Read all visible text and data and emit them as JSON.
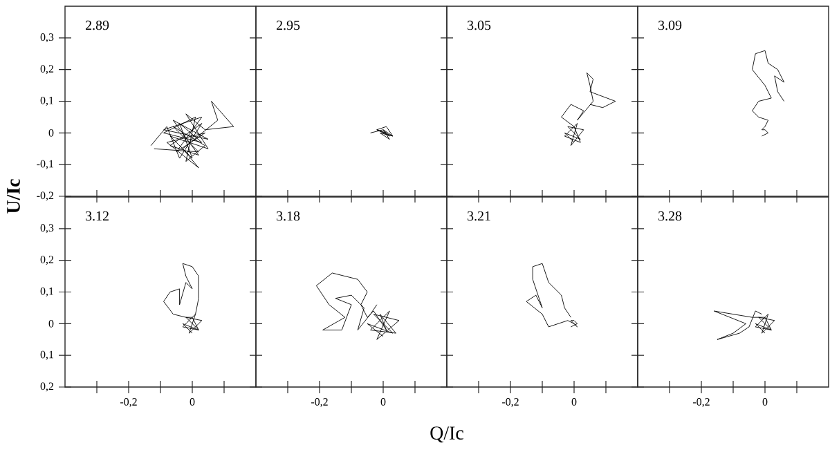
{
  "chart_data": [
    {
      "type": "line",
      "ylabel": "U/Ic",
      "annotations": [
        "2.89"
      ],
      "xlim": [
        -0.4,
        0.2
      ],
      "ylim": [
        -0.2,
        0.4
      ],
      "tick_labels": "y",
      "xticks": [
        {
          "value": -0.3,
          "label": null
        },
        {
          "value": -0.2,
          "label": null
        },
        {
          "value": -0.1,
          "label": null
        },
        {
          "value": 0,
          "label": null
        },
        {
          "value": 0.1,
          "label": null
        }
      ],
      "yticks": [
        {
          "value": -0.2,
          "label": "-0,2"
        },
        {
          "value": -0.1,
          "label": "-0,1"
        },
        {
          "value": 0,
          "label": "0"
        },
        {
          "value": 0.1,
          "label": "0,1"
        },
        {
          "value": 0.2,
          "label": "0,2"
        },
        {
          "value": 0.3,
          "label": "0,3"
        }
      ],
      "series": [
        {
          "color": "#000000",
          "x": [
            -0.13,
            -0.08,
            -0.04,
            0.03,
            -0.07,
            0.02,
            -0.06,
            0.05,
            -0.09,
            0.03,
            -0.05,
            0.04,
            -0.08,
            0.02,
            -0.03,
            0.08,
            0.06,
            0.13,
            0.04,
            -0.02,
            0.05,
            -0.07,
            0.0,
            -0.04,
            0.03,
            -0.09,
            0.01,
            -0.02,
            0.04,
            -0.06,
            0.02,
            -0.12
          ],
          "values": [
            -0.04,
            0.02,
            -0.08,
            0.03,
            -0.04,
            -0.07,
            0.04,
            -0.02,
            0.01,
            0.05,
            -0.06,
            0.0,
            -0.03,
            -0.11,
            -0.05,
            0.04,
            0.1,
            0.02,
            0.01,
            0.06,
            -0.05,
            -0.01,
            -0.08,
            0.03,
            -0.03,
            0.0,
            0.05,
            -0.09,
            -0.04,
            0.02,
            -0.06,
            -0.05
          ]
        }
      ]
    },
    {
      "type": "line",
      "annotations": [
        "2.95"
      ],
      "xlim": [
        -0.4,
        0.2
      ],
      "ylim": [
        -0.2,
        0.4
      ],
      "tick_labels": false,
      "xticks": [
        {
          "value": -0.3,
          "label": null
        },
        {
          "value": -0.2,
          "label": null
        },
        {
          "value": -0.1,
          "label": null
        },
        {
          "value": 0,
          "label": null
        },
        {
          "value": 0.1,
          "label": null
        }
      ],
      "yticks": [
        {
          "value": -0.2,
          "label": null
        },
        {
          "value": -0.1,
          "label": null
        },
        {
          "value": 0,
          "label": null
        },
        {
          "value": 0.1,
          "label": null
        },
        {
          "value": 0.2,
          "label": null
        },
        {
          "value": 0.3,
          "label": null
        }
      ],
      "series": [
        {
          "color": "#000000",
          "x": [
            -0.04,
            0.0,
            0.02,
            -0.02,
            0.01,
            0.03,
            -0.01,
            0.02,
            0.0,
            0.03,
            -0.02,
            0.01
          ],
          "values": [
            0.0,
            0.01,
            -0.01,
            0.01,
            0.02,
            -0.01,
            0.0,
            -0.02,
            0.01,
            -0.01,
            0.01,
            0.0
          ]
        }
      ]
    },
    {
      "type": "line",
      "annotations": [
        "3.05"
      ],
      "xlim": [
        -0.4,
        0.2
      ],
      "ylim": [
        -0.2,
        0.4
      ],
      "tick_labels": false,
      "xticks": [
        {
          "value": -0.3,
          "label": null
        },
        {
          "value": -0.2,
          "label": null
        },
        {
          "value": -0.1,
          "label": null
        },
        {
          "value": 0,
          "label": null
        },
        {
          "value": 0.1,
          "label": null
        }
      ],
      "yticks": [
        {
          "value": -0.2,
          "label": null
        },
        {
          "value": -0.1,
          "label": null
        },
        {
          "value": 0,
          "label": null
        },
        {
          "value": 0.1,
          "label": null
        },
        {
          "value": 0.2,
          "label": null
        },
        {
          "value": 0.3,
          "label": null
        }
      ],
      "series": [
        {
          "color": "#000000",
          "x": [
            0.0,
            -0.03,
            0.02,
            -0.02,
            0.03,
            -0.01,
            0.01,
            -0.03,
            0.02,
            0.0,
            0.0,
            -0.04,
            -0.01,
            0.03,
            0.01,
            0.06,
            0.05,
            0.04,
            0.06,
            0.05,
            0.13,
            0.09,
            0.05
          ],
          "values": [
            -0.03,
            0.0,
            -0.02,
            0.02,
            0.01,
            -0.04,
            0.03,
            -0.01,
            -0.03,
            0.02,
            0.02,
            0.05,
            0.09,
            0.07,
            0.04,
            0.1,
            0.15,
            0.19,
            0.17,
            0.13,
            0.1,
            0.08,
            0.09
          ]
        }
      ]
    },
    {
      "type": "line",
      "annotations": [
        "3.09"
      ],
      "xlim": [
        -0.4,
        0.2
      ],
      "ylim": [
        -0.2,
        0.4
      ],
      "tick_labels": false,
      "xticks": [
        {
          "value": -0.3,
          "label": null
        },
        {
          "value": -0.2,
          "label": null
        },
        {
          "value": -0.1,
          "label": null
        },
        {
          "value": 0,
          "label": null
        },
        {
          "value": 0.1,
          "label": null
        }
      ],
      "yticks": [
        {
          "value": -0.2,
          "label": null
        },
        {
          "value": -0.1,
          "label": null
        },
        {
          "value": 0,
          "label": null
        },
        {
          "value": 0.1,
          "label": null
        },
        {
          "value": 0.2,
          "label": null
        },
        {
          "value": 0.3,
          "label": null
        }
      ],
      "series": [
        {
          "color": "#000000",
          "x": [
            -0.01,
            0.01,
            0.0,
            -0.01,
            0.0,
            0.01,
            -0.02,
            -0.04,
            -0.02,
            0.02,
            0.0,
            -0.04,
            -0.03,
            0.0,
            0.01,
            0.04,
            0.06,
            0.03,
            0.04,
            0.06
          ],
          "values": [
            -0.01,
            0.0,
            0.01,
            0.01,
            0.02,
            0.04,
            0.05,
            0.07,
            0.1,
            0.11,
            0.15,
            0.2,
            0.25,
            0.26,
            0.22,
            0.2,
            0.16,
            0.18,
            0.13,
            0.1
          ]
        }
      ]
    },
    {
      "type": "line",
      "annotations": [
        "3.12"
      ],
      "xlim": [
        -0.4,
        0.2
      ],
      "ylim": [
        -0.2,
        0.4
      ],
      "xticks": [
        {
          "value": -0.3,
          "label": null
        },
        {
          "value": -0.2,
          "label": "-0,2"
        },
        {
          "value": -0.1,
          "label": null
        },
        {
          "value": 0,
          "label": "0"
        },
        {
          "value": 0.1,
          "label": null
        }
      ],
      "yticks": [
        {
          "value": -0.2,
          "label": "0,2"
        },
        {
          "value": -0.1,
          "label": "0,1"
        },
        {
          "value": 0,
          "label": "0"
        },
        {
          "value": 0.1,
          "label": "0,1"
        },
        {
          "value": 0.2,
          "label": "0,2"
        },
        {
          "value": 0.3,
          "label": "0,3"
        }
      ],
      "series": [
        {
          "color": "#000000",
          "x": [
            0.0,
            -0.03,
            0.02,
            -0.02,
            0.03,
            -0.01,
            0.01,
            -0.03,
            0.02,
            0.0,
            -0.02,
            -0.06,
            -0.09,
            -0.07,
            -0.04,
            -0.04,
            -0.02,
            0.0,
            -0.02,
            -0.03,
            0.0,
            0.02,
            0.02,
            0.01
          ],
          "values": [
            -0.03,
            0.0,
            -0.02,
            0.02,
            0.01,
            -0.03,
            0.03,
            -0.01,
            -0.02,
            0.02,
            0.02,
            0.03,
            0.07,
            0.1,
            0.11,
            0.06,
            0.13,
            0.11,
            0.15,
            0.19,
            0.18,
            0.15,
            0.08,
            0.03
          ]
        }
      ]
    },
    {
      "type": "line",
      "xlabel": "Q/Ic",
      "annotations": [
        "3.18"
      ],
      "xlim": [
        -0.4,
        0.2
      ],
      "ylim": [
        -0.2,
        0.4
      ],
      "tick_labels": "x",
      "xticks": [
        {
          "value": -0.3,
          "label": null
        },
        {
          "value": -0.2,
          "label": "-0,2"
        },
        {
          "value": -0.1,
          "label": null
        },
        {
          "value": 0,
          "label": "0"
        },
        {
          "value": 0.1,
          "label": null
        }
      ],
      "yticks": [
        {
          "value": -0.2,
          "label": null
        },
        {
          "value": -0.1,
          "label": null
        },
        {
          "value": 0,
          "label": null
        },
        {
          "value": 0.1,
          "label": null
        },
        {
          "value": 0.2,
          "label": null
        },
        {
          "value": 0.3,
          "label": null
        }
      ],
      "series": [
        {
          "color": "#000000",
          "x": [
            0.0,
            -0.05,
            0.03,
            -0.03,
            0.05,
            -0.02,
            0.02,
            -0.04,
            0.04,
            -0.01,
            0.01,
            -0.03,
            -0.05,
            -0.07,
            -0.05,
            -0.08,
            -0.16,
            -0.21,
            -0.17,
            -0.12,
            -0.19,
            -0.13,
            -0.1,
            -0.15,
            -0.1,
            -0.06,
            -0.08,
            -0.04,
            -0.02
          ],
          "values": [
            -0.04,
            0.0,
            -0.03,
            0.03,
            0.01,
            -0.05,
            0.04,
            -0.02,
            -0.03,
            0.03,
            -0.02,
            0.04,
            0.02,
            0.06,
            0.1,
            0.14,
            0.16,
            0.12,
            0.06,
            0.02,
            -0.02,
            -0.02,
            0.06,
            0.08,
            0.09,
            0.05,
            -0.02,
            0.03,
            0.06
          ]
        }
      ]
    },
    {
      "type": "line",
      "annotations": [
        "3.21"
      ],
      "xlim": [
        -0.4,
        0.2
      ],
      "ylim": [
        -0.2,
        0.4
      ],
      "tick_labels": "x",
      "xticks": [
        {
          "value": -0.3,
          "label": null
        },
        {
          "value": -0.2,
          "label": "-0,2"
        },
        {
          "value": -0.1,
          "label": null
        },
        {
          "value": 0,
          "label": "0"
        },
        {
          "value": 0.1,
          "label": null
        }
      ],
      "yticks": [
        {
          "value": -0.2,
          "label": null
        },
        {
          "value": -0.1,
          "label": null
        },
        {
          "value": 0,
          "label": null
        },
        {
          "value": 0.1,
          "label": null
        },
        {
          "value": 0.2,
          "label": null
        },
        {
          "value": 0.3,
          "label": null
        }
      ],
      "series": [
        {
          "color": "#000000",
          "x": [
            -0.01,
            0.01,
            0.0,
            -0.01,
            0.01,
            0.0,
            -0.02,
            -0.05,
            -0.08,
            -0.1,
            -0.15,
            -0.12,
            -0.1,
            -0.13,
            -0.13,
            -0.1,
            -0.08,
            -0.04,
            -0.03,
            -0.01
          ],
          "values": [
            -0.01,
            0.0,
            0.01,
            0.01,
            -0.01,
            0.0,
            0.01,
            0.0,
            -0.01,
            0.03,
            0.07,
            0.09,
            0.05,
            0.14,
            0.18,
            0.19,
            0.13,
            0.09,
            0.05,
            0.02
          ]
        }
      ]
    },
    {
      "type": "line",
      "annotations": [
        "3.28"
      ],
      "xlim": [
        -0.4,
        0.2
      ],
      "ylim": [
        -0.2,
        0.4
      ],
      "tick_labels": "x",
      "xticks": [
        {
          "value": -0.3,
          "label": null
        },
        {
          "value": -0.2,
          "label": "-0,2"
        },
        {
          "value": -0.1,
          "label": null
        },
        {
          "value": 0,
          "label": "0"
        },
        {
          "value": 0.1,
          "label": null
        }
      ],
      "yticks": [
        {
          "value": -0.2,
          "label": null
        },
        {
          "value": -0.1,
          "label": null
        },
        {
          "value": 0,
          "label": null
        },
        {
          "value": 0.1,
          "label": null
        },
        {
          "value": 0.2,
          "label": null
        },
        {
          "value": 0.3,
          "label": null
        }
      ],
      "series": [
        {
          "color": "#000000",
          "x": [
            0.0,
            -0.03,
            0.02,
            -0.02,
            0.03,
            -0.01,
            0.01,
            -0.03,
            0.02,
            0.0,
            -0.04,
            -0.1,
            -0.16,
            -0.06,
            -0.1,
            -0.15,
            -0.08,
            -0.05,
            -0.03,
            -0.01
          ],
          "values": [
            -0.03,
            0.0,
            -0.02,
            0.02,
            0.01,
            -0.03,
            0.03,
            -0.01,
            -0.02,
            0.02,
            0.02,
            0.03,
            0.04,
            0.0,
            -0.03,
            -0.05,
            -0.03,
            -0.01,
            0.04,
            0.03
          ]
        }
      ]
    }
  ]
}
